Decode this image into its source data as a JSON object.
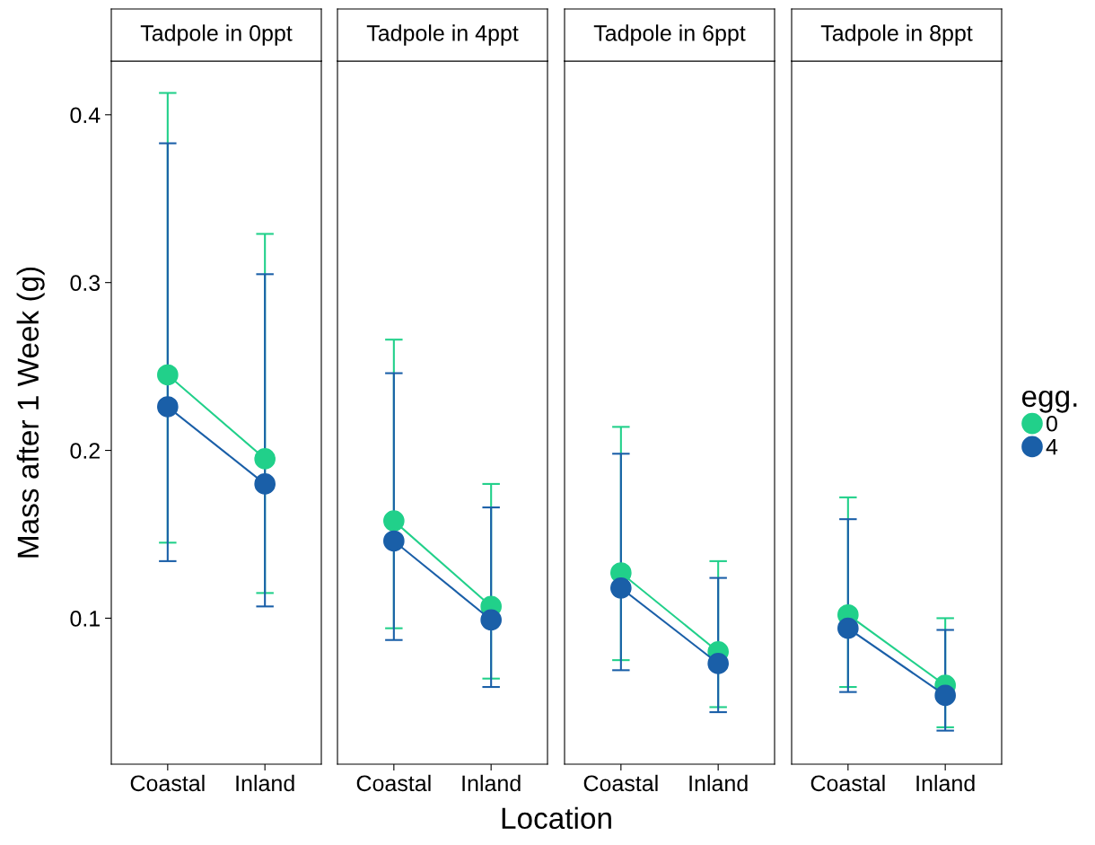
{
  "chart_data": [
    {
      "type": "line",
      "title": "Tadpole in 0ppt",
      "ylabel": "Mass after 1 Week (g)",
      "legend_title": "egg.",
      "legend": "right",
      "marker": "circle",
      "grid": false,
      "categories": [
        "Coastal",
        "Inland"
      ],
      "ylim": [
        0.013,
        0.432
      ],
      "yticks": [
        0.1,
        0.2,
        0.3,
        0.4
      ],
      "series": [
        {
          "name": "0",
          "color": "#21d08a",
          "values": [
            0.245,
            0.195
          ],
          "errors": [
            [
              0.145,
              0.413
            ],
            [
              0.115,
              0.329
            ]
          ]
        },
        {
          "name": "4",
          "color": "#1a5fa8",
          "values": [
            0.226,
            0.18
          ],
          "errors": [
            [
              0.134,
              0.383
            ],
            [
              0.107,
              0.305
            ]
          ]
        }
      ]
    },
    {
      "type": "line",
      "title": "Tadpole in 4ppt",
      "xlabel": "Location",
      "marker": "circle",
      "grid": false,
      "tick_labels": "x",
      "categories": [
        "Coastal",
        "Inland"
      ],
      "ylim": [
        0.013,
        0.432
      ],
      "series": [
        {
          "color": "#21d08a",
          "values": [
            0.158,
            0.107
          ],
          "errors": [
            [
              0.094,
              0.266
            ],
            [
              0.064,
              0.18
            ]
          ]
        },
        {
          "color": "#1a5fa8",
          "values": [
            0.146,
            0.099
          ],
          "errors": [
            [
              0.087,
              0.246
            ],
            [
              0.059,
              0.166
            ]
          ]
        }
      ]
    },
    {
      "type": "line",
      "title": "Tadpole in 6ppt",
      "marker": "circle",
      "grid": false,
      "tick_labels": "x",
      "categories": [
        "Coastal",
        "Inland"
      ],
      "ylim": [
        0.013,
        0.432
      ],
      "series": [
        {
          "color": "#21d08a",
          "values": [
            0.127,
            0.08
          ],
          "errors": [
            [
              0.075,
              0.214
            ],
            [
              0.047,
              0.134
            ]
          ]
        },
        {
          "color": "#1a5fa8",
          "values": [
            0.118,
            0.073
          ],
          "errors": [
            [
              0.069,
              0.198
            ],
            [
              0.044,
              0.124
            ]
          ]
        }
      ]
    },
    {
      "type": "line",
      "title": "Tadpole in 8ppt",
      "marker": "circle",
      "grid": false,
      "tick_labels": "x",
      "categories": [
        "Coastal",
        "Inland"
      ],
      "ylim": [
        0.013,
        0.432
      ],
      "series": [
        {
          "color": "#21d08a",
          "values": [
            0.102,
            0.06
          ],
          "errors": [
            [
              0.059,
              0.172
            ],
            [
              0.035,
              0.1
            ]
          ]
        },
        {
          "color": "#1a5fa8",
          "values": [
            0.094,
            0.054
          ],
          "errors": [
            [
              0.056,
              0.159
            ],
            [
              0.033,
              0.093
            ]
          ]
        }
      ]
    }
  ]
}
